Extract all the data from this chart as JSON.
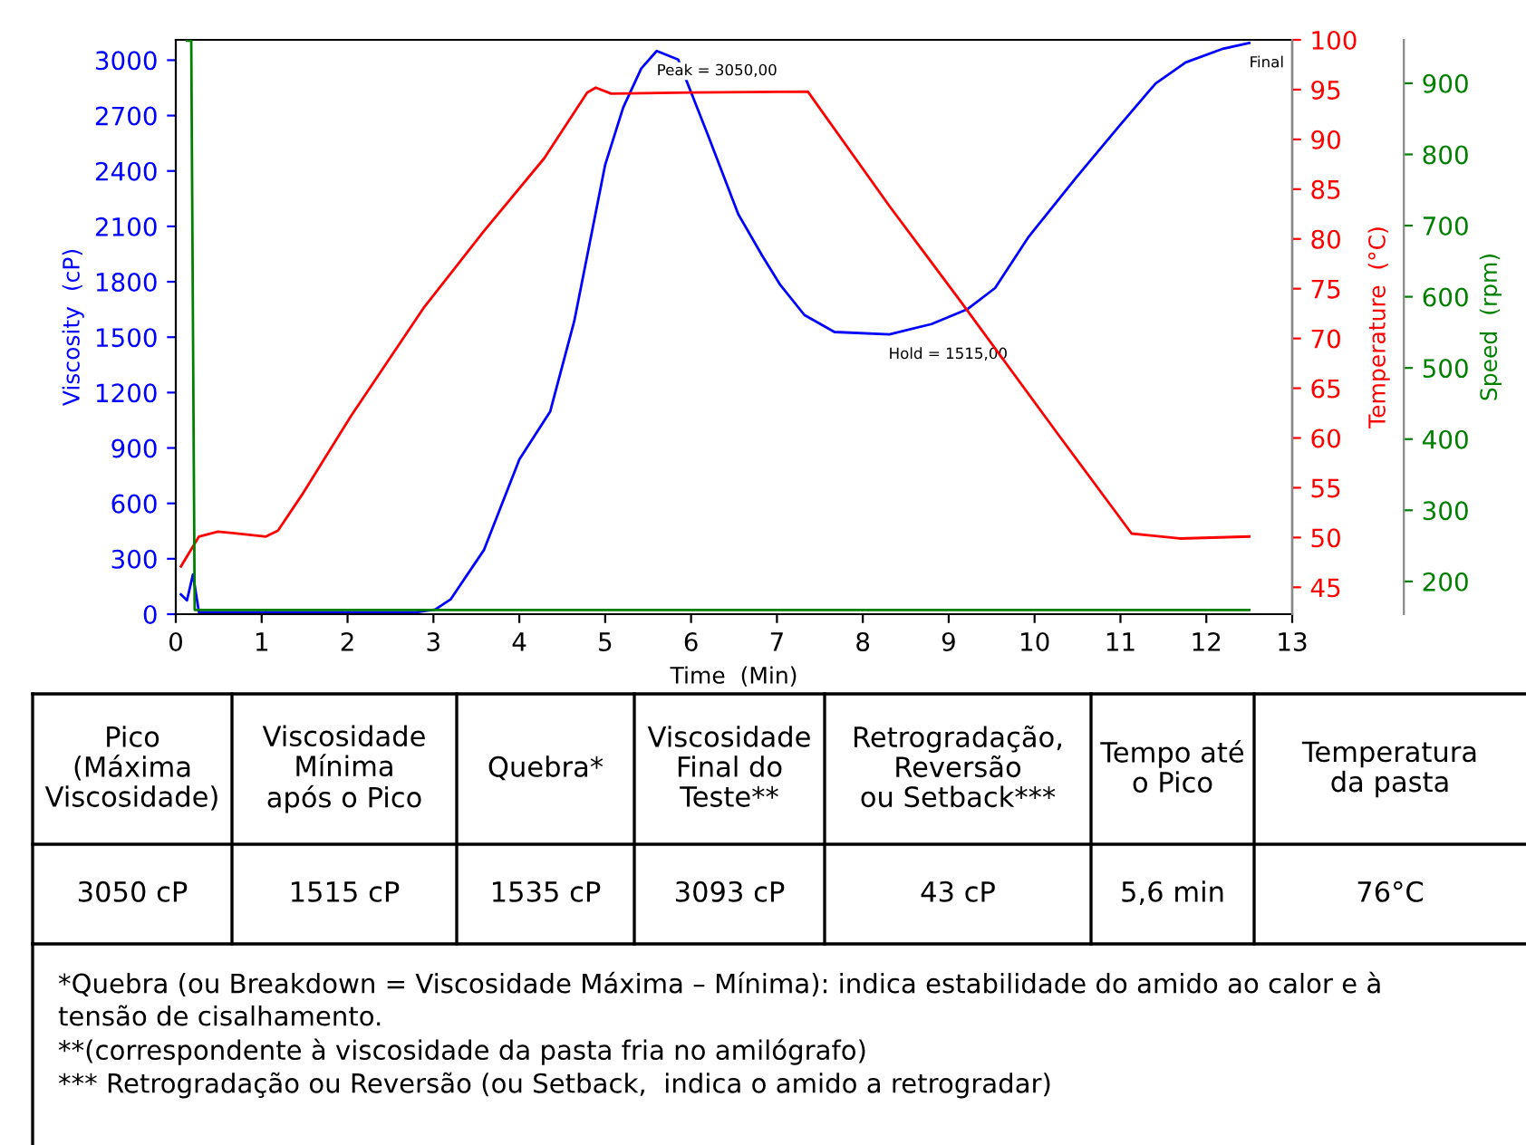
{
  "chart_data": {
    "type": "line",
    "xlabel": "Time  (Min)",
    "ylabel": "Viscosity  (cP)",
    "y2label": "Temperature  (°C)",
    "y3label": "Speed  (rpm)",
    "xlim": [
      0,
      13
    ],
    "xticks": [
      0,
      1,
      2,
      3,
      4,
      5,
      6,
      7,
      8,
      9,
      10,
      11,
      12,
      13
    ],
    "ylim": [
      0,
      3110
    ],
    "yticks": [
      0,
      300,
      600,
      900,
      1200,
      1500,
      1800,
      2100,
      2400,
      2700,
      3000
    ],
    "y2lim": [
      42.3,
      100
    ],
    "y2ticks": [
      45,
      50,
      55,
      60,
      65,
      70,
      75,
      80,
      85,
      90,
      95,
      100
    ],
    "y3lim": [
      154,
      961
    ],
    "y3ticks": [
      200,
      300,
      400,
      500,
      600,
      700,
      800,
      900
    ],
    "grid": false,
    "legend": false,
    "marker": "none",
    "line_style": "solid",
    "series": [
      {
        "color": "#0000ff",
        "x": [
          0.06,
          0.13,
          0.2,
          0.27,
          1.0,
          2.0,
          2.8,
          3.02,
          3.2,
          3.59,
          4.0,
          4.36,
          4.64,
          4.82,
          5.0,
          5.21,
          5.42,
          5.6,
          5.85,
          6.2,
          6.55,
          6.83,
          7.04,
          7.32,
          7.67,
          8.31,
          8.8,
          9.22,
          9.54,
          9.93,
          10.49,
          10.99,
          11.41,
          11.76,
          12.18,
          12.5
        ],
        "values": [
          107,
          75,
          215,
          10,
          10,
          10,
          10,
          25,
          80,
          349,
          837,
          1098,
          1587,
          2010,
          2434,
          2744,
          2955,
          3050,
          3003,
          2590,
          2166,
          1940,
          1782,
          1620,
          1528,
          1515,
          1571,
          1652,
          1766,
          2043,
          2368,
          2646,
          2874,
          2988,
          3060,
          3093
        ]
      },
      {
        "color": "#ff0000",
        "axis": "y2",
        "x": [
          0.06,
          0.27,
          0.49,
          1.05,
          1.19,
          1.47,
          2.04,
          2.88,
          3.59,
          4.29,
          4.79,
          4.89,
          5.07,
          6.0,
          7.36,
          8.31,
          9.15,
          10.28,
          11.13,
          11.69,
          12.5
        ],
        "values": [
          47.1,
          50.1,
          50.6,
          50.1,
          50.7,
          54.3,
          62.2,
          73.0,
          80.8,
          88.1,
          94.7,
          95.2,
          94.6,
          94.7,
          94.8,
          83.3,
          73.6,
          60.3,
          50.4,
          49.9,
          50.1
        ]
      },
      {
        "color": "#008000",
        "axis": "y3",
        "x": [
          0.13,
          0.18,
          0.22,
          12.5
        ],
        "values": [
          960,
          960,
          160,
          160
        ]
      }
    ],
    "annotations": [
      {
        "text": "Peak = 3050,00",
        "x": 5.6,
        "y": 3050
      },
      {
        "text": "Hold = 1515,00",
        "x": 8.3,
        "y": 1515
      },
      {
        "text": "Final",
        "x": 12.5,
        "y": 3093
      },
      "Pico\n(Máxima\nViscosidade)",
      "Viscosidade\nMínima\napós o Pico",
      "Quebra*",
      "Viscosidade\nFinal do\nTeste**",
      "Retrogradação,\nReversão\nou Setback***",
      "Tempo até\no Pico",
      "Temperatura\nda pasta",
      "3050 cP",
      "1515 cP",
      "1535 cP",
      "3093 cP",
      "43 cP",
      "5,6 min",
      "76°C",
      "*Quebra (ou Breakdown = Viscosidade Máxima – Mínima): indica estabilidade do amido ao calor e à\ntensão de cisalhamento.\n**(correspondente à viscosidade da pasta fria no amilógrafo)\n*** Retrogradação ou Reversão (ou Setback,  indica o amido a retrogradar)"
    ]
  }
}
